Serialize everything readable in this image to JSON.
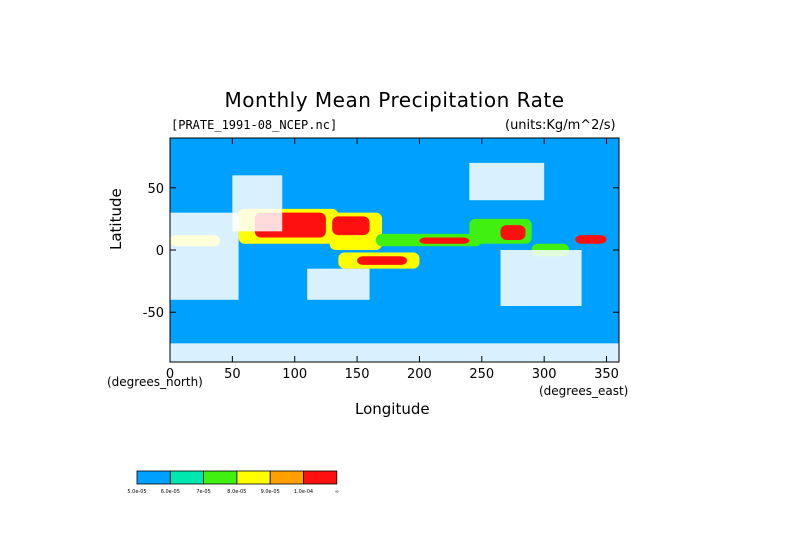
{
  "chart_data": {
    "type": "heatmap",
    "title": "Monthly Mean Precipitation Rate",
    "subtitle_left": "[PRATE_1991-08_NCEP.nc]",
    "subtitle_right": "(units:Kg/m^2/s)",
    "xlabel": "Longitude",
    "ylabel": "Latitude",
    "x_axis_unit": "(degrees_east)",
    "y_axis_unit": "(degrees_north)",
    "xlim": [
      0,
      360
    ],
    "ylim": [
      -90,
      90
    ],
    "x_ticks": [
      "0",
      "50",
      "100",
      "150",
      "200",
      "250",
      "300",
      "350"
    ],
    "y_ticks": [
      "50",
      "0",
      "-50"
    ],
    "x_tick_values": [
      0,
      50,
      100,
      150,
      200,
      250,
      300,
      350
    ],
    "y_tick_values": [
      50,
      0,
      -50
    ],
    "colorbar": {
      "levels": [
        "5.0e-05",
        "6.0e-05",
        "7e-05",
        "8.0e-05",
        "9.0e-05",
        "1.0e-04",
        "∞"
      ],
      "colors": [
        "#00a0ff",
        "#00e8b0",
        "#40f010",
        "#ffff00",
        "#ffa000",
        "#ff1010"
      ]
    },
    "missing_color": "#ffffff",
    "regions": [
      {
        "level": 3,
        "lon": [
          55,
          135
        ],
        "lat": [
          5,
          33
        ]
      },
      {
        "level": 5,
        "lon": [
          68,
          125
        ],
        "lat": [
          10,
          30
        ]
      },
      {
        "level": 3,
        "lon": [
          128,
          170
        ],
        "lat": [
          0,
          30
        ]
      },
      {
        "level": 5,
        "lon": [
          130,
          160
        ],
        "lat": [
          12,
          27
        ]
      },
      {
        "level": 2,
        "lon": [
          165,
          250
        ],
        "lat": [
          3,
          13
        ]
      },
      {
        "level": 5,
        "lon": [
          200,
          240
        ],
        "lat": [
          5,
          10
        ]
      },
      {
        "level": 3,
        "lon": [
          135,
          200
        ],
        "lat": [
          -15,
          -2
        ]
      },
      {
        "level": 5,
        "lon": [
          150,
          190
        ],
        "lat": [
          -12,
          -5
        ]
      },
      {
        "level": 2,
        "lon": [
          240,
          290
        ],
        "lat": [
          5,
          25
        ]
      },
      {
        "level": 5,
        "lon": [
          265,
          285
        ],
        "lat": [
          8,
          20
        ]
      },
      {
        "level": 5,
        "lon": [
          325,
          350
        ],
        "lat": [
          5,
          12
        ]
      },
      {
        "level": 3,
        "lon": [
          0,
          40
        ],
        "lat": [
          3,
          12
        ]
      },
      {
        "level": 2,
        "lon": [
          290,
          320
        ],
        "lat": [
          -5,
          5
        ]
      }
    ],
    "missing_regions": [
      {
        "lon": [
          0,
          55
        ],
        "lat": [
          -40,
          30
        ]
      },
      {
        "lon": [
          265,
          330
        ],
        "lat": [
          -45,
          0
        ]
      },
      {
        "lon": [
          110,
          160
        ],
        "lat": [
          -40,
          -15
        ]
      },
      {
        "lon": [
          50,
          90
        ],
        "lat": [
          15,
          60
        ]
      },
      {
        "lon": [
          240,
          300
        ],
        "lat": [
          40,
          70
        ]
      },
      {
        "lon": [
          0,
          360
        ],
        "lat": [
          -90,
          -75
        ]
      }
    ]
  }
}
